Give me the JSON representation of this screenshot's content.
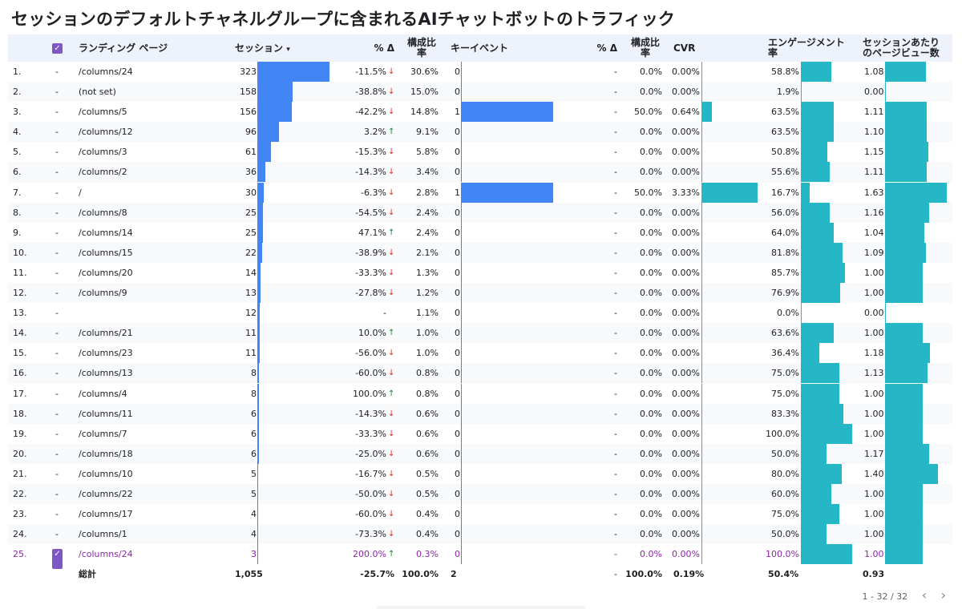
{
  "title": "セッションのデフォルトチャネルグループに含まれるAIチャットボットのトラフィック",
  "headers": {
    "landing": "ランディング ページ",
    "sessions": "セッション",
    "sort_icon": "▾",
    "delta1": "% Δ",
    "share1_a": "構成比",
    "share1_b": "率",
    "keyevents": "キーイベント",
    "delta2": "% Δ",
    "share2_a": "構成比",
    "share2_b": "率",
    "cvr": "CVR",
    "engage_a": "エンゲージメント",
    "engage_b": "率",
    "ppv_a": "セッションあたり",
    "ppv_b": "のページビュー数"
  },
  "colors": {
    "bar_blue": "#4285f4",
    "bar_teal": "#26b7c7",
    "selected": "#8e24aa",
    "checkbox": "#7e57c2"
  },
  "rows": [
    {
      "idx": "1.",
      "dash": "-",
      "page": "/columns/24",
      "sessions": "323",
      "s_val": 323,
      "delta": "-11.5%",
      "dir": "down",
      "share": "30.6%",
      "ke": "0",
      "ke_val": 0,
      "delta2": "-",
      "share2": "0.0%",
      "cvr": "0.00%",
      "cvr_val": 0,
      "eng": "58.8%",
      "eng_val": 58.8,
      "ppv": "1.08",
      "ppv_val": 1.08
    },
    {
      "idx": "2.",
      "dash": "-",
      "page": "(not set)",
      "sessions": "158",
      "s_val": 158,
      "delta": "-38.8%",
      "dir": "down",
      "share": "15.0%",
      "ke": "0",
      "ke_val": 0,
      "delta2": "-",
      "share2": "0.0%",
      "cvr": "0.00%",
      "cvr_val": 0,
      "eng": "1.9%",
      "eng_val": 1.9,
      "ppv": "0.00",
      "ppv_val": 0
    },
    {
      "idx": "3.",
      "dash": "-",
      "page": "/columns/5",
      "sessions": "156",
      "s_val": 156,
      "delta": "-42.2%",
      "dir": "down",
      "share": "14.8%",
      "ke": "1",
      "ke_val": 1,
      "delta2": "-",
      "share2": "50.0%",
      "cvr": "0.64%",
      "cvr_val": 0.64,
      "eng": "63.5%",
      "eng_val": 63.5,
      "ppv": "1.11",
      "ppv_val": 1.11
    },
    {
      "idx": "4.",
      "dash": "-",
      "page": "/columns/12",
      "sessions": "96",
      "s_val": 96,
      "delta": "3.2%",
      "dir": "up",
      "share": "9.1%",
      "ke": "0",
      "ke_val": 0,
      "delta2": "-",
      "share2": "0.0%",
      "cvr": "0.00%",
      "cvr_val": 0,
      "eng": "63.5%",
      "eng_val": 63.5,
      "ppv": "1.10",
      "ppv_val": 1.1
    },
    {
      "idx": "5.",
      "dash": "-",
      "page": "/columns/3",
      "sessions": "61",
      "s_val": 61,
      "delta": "-15.3%",
      "dir": "down",
      "share": "5.8%",
      "ke": "0",
      "ke_val": 0,
      "delta2": "-",
      "share2": "0.0%",
      "cvr": "0.00%",
      "cvr_val": 0,
      "eng": "50.8%",
      "eng_val": 50.8,
      "ppv": "1.15",
      "ppv_val": 1.15
    },
    {
      "idx": "6.",
      "dash": "-",
      "page": "/columns/2",
      "sessions": "36",
      "s_val": 36,
      "delta": "-14.3%",
      "dir": "down",
      "share": "3.4%",
      "ke": "0",
      "ke_val": 0,
      "delta2": "-",
      "share2": "0.0%",
      "cvr": "0.00%",
      "cvr_val": 0,
      "eng": "55.6%",
      "eng_val": 55.6,
      "ppv": "1.11",
      "ppv_val": 1.11
    },
    {
      "idx": "7.",
      "dash": "-",
      "page": "/",
      "sessions": "30",
      "s_val": 30,
      "delta": "-6.3%",
      "dir": "down",
      "share": "2.8%",
      "ke": "1",
      "ke_val": 1,
      "delta2": "-",
      "share2": "50.0%",
      "cvr": "3.33%",
      "cvr_val": 3.33,
      "eng": "16.7%",
      "eng_val": 16.7,
      "ppv": "1.63",
      "ppv_val": 1.63
    },
    {
      "idx": "8.",
      "dash": "-",
      "page": "/columns/8",
      "sessions": "25",
      "s_val": 25,
      "delta": "-54.5%",
      "dir": "down",
      "share": "2.4%",
      "ke": "0",
      "ke_val": 0,
      "delta2": "-",
      "share2": "0.0%",
      "cvr": "0.00%",
      "cvr_val": 0,
      "eng": "56.0%",
      "eng_val": 56.0,
      "ppv": "1.16",
      "ppv_val": 1.16
    },
    {
      "idx": "9.",
      "dash": "-",
      "page": "/columns/14",
      "sessions": "25",
      "s_val": 25,
      "delta": "47.1%",
      "dir": "up",
      "share": "2.4%",
      "ke": "0",
      "ke_val": 0,
      "delta2": "-",
      "share2": "0.0%",
      "cvr": "0.00%",
      "cvr_val": 0,
      "eng": "64.0%",
      "eng_val": 64.0,
      "ppv": "1.04",
      "ppv_val": 1.04
    },
    {
      "idx": "10.",
      "dash": "-",
      "page": "/columns/15",
      "sessions": "22",
      "s_val": 22,
      "delta": "-38.9%",
      "dir": "down",
      "share": "2.1%",
      "ke": "0",
      "ke_val": 0,
      "delta2": "-",
      "share2": "0.0%",
      "cvr": "0.00%",
      "cvr_val": 0,
      "eng": "81.8%",
      "eng_val": 81.8,
      "ppv": "1.09",
      "ppv_val": 1.09
    },
    {
      "idx": "11.",
      "dash": "-",
      "page": "/columns/20",
      "sessions": "14",
      "s_val": 14,
      "delta": "-33.3%",
      "dir": "down",
      "share": "1.3%",
      "ke": "0",
      "ke_val": 0,
      "delta2": "-",
      "share2": "0.0%",
      "cvr": "0.00%",
      "cvr_val": 0,
      "eng": "85.7%",
      "eng_val": 85.7,
      "ppv": "1.00",
      "ppv_val": 1.0
    },
    {
      "idx": "12.",
      "dash": "-",
      "page": "/columns/9",
      "sessions": "13",
      "s_val": 13,
      "delta": "-27.8%",
      "dir": "down",
      "share": "1.2%",
      "ke": "0",
      "ke_val": 0,
      "delta2": "-",
      "share2": "0.0%",
      "cvr": "0.00%",
      "cvr_val": 0,
      "eng": "76.9%",
      "eng_val": 76.9,
      "ppv": "1.00",
      "ppv_val": 1.0
    },
    {
      "idx": "13.",
      "dash": "-",
      "page": "",
      "sessions": "12",
      "s_val": 12,
      "delta": "-",
      "dir": "",
      "share": "1.1%",
      "ke": "0",
      "ke_val": 0,
      "delta2": "-",
      "share2": "0.0%",
      "cvr": "0.00%",
      "cvr_val": 0,
      "eng": "0.0%",
      "eng_val": 0,
      "ppv": "0.00",
      "ppv_val": 0
    },
    {
      "idx": "14.",
      "dash": "-",
      "page": "/columns/21",
      "sessions": "11",
      "s_val": 11,
      "delta": "10.0%",
      "dir": "up",
      "share": "1.0%",
      "ke": "0",
      "ke_val": 0,
      "delta2": "-",
      "share2": "0.0%",
      "cvr": "0.00%",
      "cvr_val": 0,
      "eng": "63.6%",
      "eng_val": 63.6,
      "ppv": "1.00",
      "ppv_val": 1.0
    },
    {
      "idx": "15.",
      "dash": "-",
      "page": "/columns/23",
      "sessions": "11",
      "s_val": 11,
      "delta": "-56.0%",
      "dir": "down",
      "share": "1.0%",
      "ke": "0",
      "ke_val": 0,
      "delta2": "-",
      "share2": "0.0%",
      "cvr": "0.00%",
      "cvr_val": 0,
      "eng": "36.4%",
      "eng_val": 36.4,
      "ppv": "1.18",
      "ppv_val": 1.18
    },
    {
      "idx": "16.",
      "dash": "-",
      "page": "/columns/13",
      "sessions": "8",
      "s_val": 8,
      "delta": "-60.0%",
      "dir": "down",
      "share": "0.8%",
      "ke": "0",
      "ke_val": 0,
      "delta2": "-",
      "share2": "0.0%",
      "cvr": "0.00%",
      "cvr_val": 0,
      "eng": "75.0%",
      "eng_val": 75.0,
      "ppv": "1.13",
      "ppv_val": 1.13
    },
    {
      "idx": "17.",
      "dash": "-",
      "page": "/columns/4",
      "sessions": "8",
      "s_val": 8,
      "delta": "100.0%",
      "dir": "up",
      "share": "0.8%",
      "ke": "0",
      "ke_val": 0,
      "delta2": "-",
      "share2": "0.0%",
      "cvr": "0.00%",
      "cvr_val": 0,
      "eng": "75.0%",
      "eng_val": 75.0,
      "ppv": "1.00",
      "ppv_val": 1.0
    },
    {
      "idx": "18.",
      "dash": "-",
      "page": "/columns/11",
      "sessions": "6",
      "s_val": 6,
      "delta": "-14.3%",
      "dir": "down",
      "share": "0.6%",
      "ke": "0",
      "ke_val": 0,
      "delta2": "-",
      "share2": "0.0%",
      "cvr": "0.00%",
      "cvr_val": 0,
      "eng": "83.3%",
      "eng_val": 83.3,
      "ppv": "1.00",
      "ppv_val": 1.0
    },
    {
      "idx": "19.",
      "dash": "-",
      "page": "/columns/7",
      "sessions": "6",
      "s_val": 6,
      "delta": "-33.3%",
      "dir": "down",
      "share": "0.6%",
      "ke": "0",
      "ke_val": 0,
      "delta2": "-",
      "share2": "0.0%",
      "cvr": "0.00%",
      "cvr_val": 0,
      "eng": "100.0%",
      "eng_val": 100,
      "ppv": "1.00",
      "ppv_val": 1.0
    },
    {
      "idx": "20.",
      "dash": "-",
      "page": "/columns/18",
      "sessions": "6",
      "s_val": 6,
      "delta": "-25.0%",
      "dir": "down",
      "share": "0.6%",
      "ke": "0",
      "ke_val": 0,
      "delta2": "-",
      "share2": "0.0%",
      "cvr": "0.00%",
      "cvr_val": 0,
      "eng": "50.0%",
      "eng_val": 50.0,
      "ppv": "1.17",
      "ppv_val": 1.17
    },
    {
      "idx": "21.",
      "dash": "-",
      "page": "/columns/10",
      "sessions": "5",
      "s_val": 5,
      "delta": "-16.7%",
      "dir": "down",
      "share": "0.5%",
      "ke": "0",
      "ke_val": 0,
      "delta2": "-",
      "share2": "0.0%",
      "cvr": "0.00%",
      "cvr_val": 0,
      "eng": "80.0%",
      "eng_val": 80.0,
      "ppv": "1.40",
      "ppv_val": 1.4
    },
    {
      "idx": "22.",
      "dash": "-",
      "page": "/columns/22",
      "sessions": "5",
      "s_val": 5,
      "delta": "-50.0%",
      "dir": "down",
      "share": "0.5%",
      "ke": "0",
      "ke_val": 0,
      "delta2": "-",
      "share2": "0.0%",
      "cvr": "0.00%",
      "cvr_val": 0,
      "eng": "60.0%",
      "eng_val": 60.0,
      "ppv": "1.00",
      "ppv_val": 1.0
    },
    {
      "idx": "23.",
      "dash": "-",
      "page": "/columns/17",
      "sessions": "4",
      "s_val": 4,
      "delta": "-60.0%",
      "dir": "down",
      "share": "0.4%",
      "ke": "0",
      "ke_val": 0,
      "delta2": "-",
      "share2": "0.0%",
      "cvr": "0.00%",
      "cvr_val": 0,
      "eng": "75.0%",
      "eng_val": 75.0,
      "ppv": "1.00",
      "ppv_val": 1.0
    },
    {
      "idx": "24.",
      "dash": "-",
      "page": "/columns/1",
      "sessions": "4",
      "s_val": 4,
      "delta": "-73.3%",
      "dir": "down",
      "share": "0.4%",
      "ke": "0",
      "ke_val": 0,
      "delta2": "-",
      "share2": "0.0%",
      "cvr": "0.00%",
      "cvr_val": 0,
      "eng": "50.0%",
      "eng_val": 50.0,
      "ppv": "1.00",
      "ppv_val": 1.0
    },
    {
      "idx": "25.",
      "dash": "",
      "checked": true,
      "page": "/columns/24",
      "sessions": "3",
      "s_val": 3,
      "delta": "200.0%",
      "dir": "up",
      "share": "0.3%",
      "ke": "0",
      "ke_val": 0,
      "delta2": "-",
      "share2": "0.0%",
      "cvr": "0.00%",
      "cvr_val": 0,
      "eng": "100.0%",
      "eng_val": 100,
      "ppv": "1.00",
      "ppv_val": 1.0
    }
  ],
  "total": {
    "label": "総計",
    "sessions": "1,055",
    "delta": "-25.7%",
    "share": "100.0%",
    "ke": "2",
    "delta2": "-",
    "share2": "100.0%",
    "cvr": "0.19%",
    "eng": "50.4%",
    "ppv": "0.93"
  },
  "pagination": {
    "range": "1 - 32 / 32",
    "prev": "‹",
    "next": "›"
  }
}
